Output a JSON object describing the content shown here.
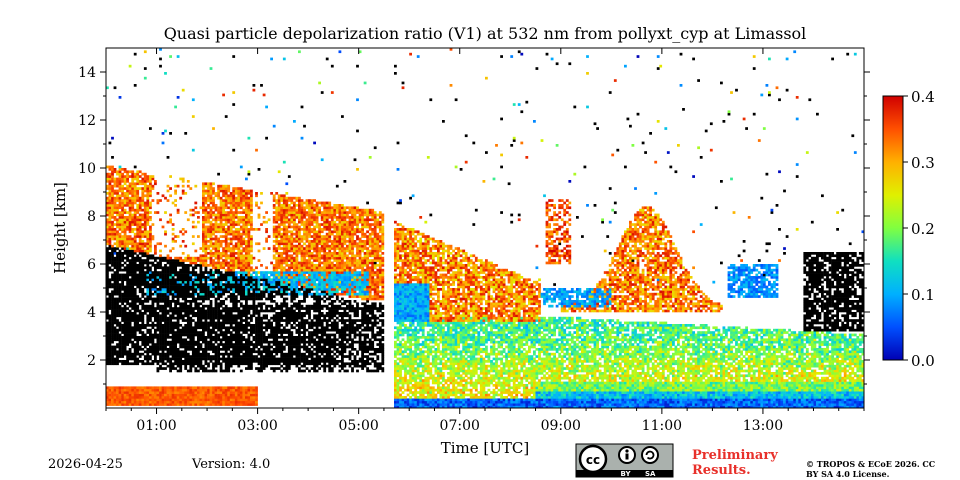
{
  "chart_data": {
    "type": "heatmap",
    "title": "Quasi particle depolarization ratio (V1) at 532 nm from pollyxt_cyp at Limassol",
    "xlabel": "Time [UTC]",
    "ylabel": "Height [km]",
    "x_ticks": [
      "01:00",
      "03:00",
      "05:00",
      "07:00",
      "09:00",
      "11:00",
      "13:00"
    ],
    "x_tick_hours": [
      1,
      3,
      5,
      7,
      9,
      11,
      13
    ],
    "xlim_hours": [
      0,
      15
    ],
    "y_ticks": [
      "2",
      "4",
      "6",
      "8",
      "10",
      "12",
      "14"
    ],
    "y_tick_values": [
      2,
      4,
      6,
      8,
      10,
      12,
      14
    ],
    "ylim_km": [
      0,
      15
    ],
    "colorbar": {
      "ticks": [
        "0.0",
        "0.1",
        "0.2",
        "0.3",
        "0.4"
      ],
      "tick_values": [
        0,
        0.1,
        0.2,
        0.3,
        0.4
      ],
      "range": [
        0,
        0.4
      ],
      "colormap": "jet"
    },
    "data_gap_hours": [
      5.5,
      5.7
    ],
    "features": [
      {
        "name": "elevated aerosol layer (high depol)",
        "t0": 0.0,
        "t1": 5.5,
        "h0": 4.5,
        "h1": 10.1,
        "value": 0.33
      },
      {
        "name": "low-depol layer ~5 km",
        "t0": 0.8,
        "t1": 4.5,
        "h0": 4.8,
        "h1": 5.8,
        "value": 0.1
      },
      {
        "name": "boundary layer mixed depol",
        "t0": 5.7,
        "t1": 15.0,
        "h0": 0.3,
        "h1": 3.8,
        "value": 0.22
      },
      {
        "name": "elevated layer morning",
        "t0": 5.7,
        "t1": 8.5,
        "h0": 3.5,
        "h1": 8.0,
        "value": 0.3
      },
      {
        "name": "cirrus-like plumes",
        "t0": 8.8,
        "t1": 12.0,
        "h0": 4.0,
        "h1": 8.5,
        "value": 0.32
      },
      {
        "name": "near-ground low depol",
        "t0": 9.0,
        "t1": 15.0,
        "h0": 0.0,
        "h1": 1.2,
        "value": 0.08
      }
    ]
  },
  "footer": {
    "date": "2026-04-25",
    "version": "Version: 4.0",
    "preliminary": "Preliminary Results.",
    "copyright": "© TROPOS & ECoE 2026. CC BY SA 4.0 License.",
    "license_badge": "BY SA"
  },
  "colors": {
    "background": "#ffffff",
    "no_signal": "#000000",
    "preliminary_text": "#e8302a"
  }
}
